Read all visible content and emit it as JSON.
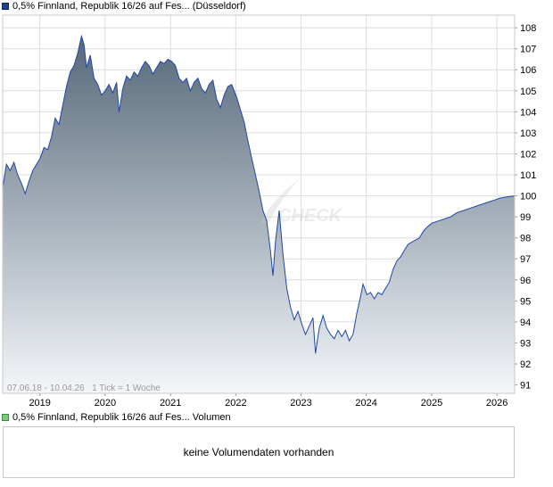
{
  "legend": {
    "price_label": "0,5% Finnland, Republik 16/26 auf Fes... (Düsseldorf)",
    "volume_label": "0,5% Finnland, Republik 16/26 auf Fes... Volumen"
  },
  "info_text": "07.06.18 - 10.04.26   1 Tick = 1 Woche",
  "watermark": "CHECK",
  "volume": {
    "empty_text": "keine Volumendaten vorhanden"
  },
  "colors": {
    "line": "#1f46a8",
    "fill_top": "#56697a",
    "fill_bottom": "#f4f6f9",
    "grid": "#dcdcdc"
  },
  "chart_data": {
    "type": "area",
    "x_tick_labels": [
      "2019",
      "2020",
      "2021",
      "2022",
      "2023",
      "2024",
      "2025",
      "2026"
    ],
    "y_tick_labels": [
      "91",
      "92",
      "93",
      "94",
      "95",
      "96",
      "97",
      "98",
      "99",
      "100",
      "101",
      "102",
      "103",
      "104",
      "105",
      "106",
      "107",
      "108"
    ],
    "ylim": [
      90.6,
      108.6
    ],
    "xlim": [
      "2018-06-07",
      "2026-04-10"
    ],
    "grid": true,
    "series": [
      {
        "values": [
          [
            "2018-06-07",
            100.4
          ],
          [
            "2018-06-28",
            101.5
          ],
          [
            "2018-07-19",
            101.2
          ],
          [
            "2018-08-09",
            101.6
          ],
          [
            "2018-08-30",
            101.0
          ],
          [
            "2018-09-20",
            100.6
          ],
          [
            "2018-10-11",
            100.1
          ],
          [
            "2018-11-01",
            100.7
          ],
          [
            "2018-11-22",
            101.2
          ],
          [
            "2018-12-13",
            101.5
          ],
          [
            "2019-01-03",
            101.8
          ],
          [
            "2019-01-24",
            102.3
          ],
          [
            "2019-02-14",
            102.2
          ],
          [
            "2019-03-07",
            102.8
          ],
          [
            "2019-03-28",
            103.7
          ],
          [
            "2019-04-18",
            103.4
          ],
          [
            "2019-05-09",
            104.3
          ],
          [
            "2019-05-30",
            105.2
          ],
          [
            "2019-06-20",
            105.9
          ],
          [
            "2019-07-11",
            106.2
          ],
          [
            "2019-08-01",
            106.8
          ],
          [
            "2019-08-22",
            107.6
          ],
          [
            "2019-09-05",
            107.2
          ],
          [
            "2019-09-19",
            106.1
          ],
          [
            "2019-10-10",
            106.7
          ],
          [
            "2019-10-31",
            105.6
          ],
          [
            "2019-11-21",
            105.3
          ],
          [
            "2019-12-12",
            104.8
          ],
          [
            "2020-01-02",
            105.0
          ],
          [
            "2020-01-23",
            105.3
          ],
          [
            "2020-02-13",
            104.9
          ],
          [
            "2020-03-05",
            105.4
          ],
          [
            "2020-03-19",
            104.0
          ],
          [
            "2020-04-09",
            105.1
          ],
          [
            "2020-04-30",
            105.7
          ],
          [
            "2020-05-21",
            105.5
          ],
          [
            "2020-06-11",
            105.9
          ],
          [
            "2020-07-02",
            105.7
          ],
          [
            "2020-07-23",
            106.1
          ],
          [
            "2020-08-13",
            106.4
          ],
          [
            "2020-09-03",
            106.2
          ],
          [
            "2020-09-24",
            105.8
          ],
          [
            "2020-10-15",
            106.1
          ],
          [
            "2020-11-05",
            106.4
          ],
          [
            "2020-11-26",
            106.3
          ],
          [
            "2020-12-17",
            106.5
          ],
          [
            "2021-01-07",
            106.4
          ],
          [
            "2021-01-28",
            106.2
          ],
          [
            "2021-02-18",
            105.6
          ],
          [
            "2021-03-11",
            105.4
          ],
          [
            "2021-04-01",
            105.6
          ],
          [
            "2021-04-22",
            105.0
          ],
          [
            "2021-05-13",
            105.4
          ],
          [
            "2021-06-03",
            105.6
          ],
          [
            "2021-06-24",
            105.1
          ],
          [
            "2021-07-15",
            104.9
          ],
          [
            "2021-08-05",
            105.3
          ],
          [
            "2021-08-26",
            105.5
          ],
          [
            "2021-09-16",
            104.6
          ],
          [
            "2021-10-07",
            104.2
          ],
          [
            "2021-10-28",
            104.8
          ],
          [
            "2021-11-18",
            105.2
          ],
          [
            "2021-12-09",
            105.3
          ],
          [
            "2022-01-06",
            104.7
          ],
          [
            "2022-01-27",
            104.1
          ],
          [
            "2022-02-17",
            103.5
          ],
          [
            "2022-03-10",
            102.6
          ],
          [
            "2022-03-31",
            101.8
          ],
          [
            "2022-04-21",
            101.0
          ],
          [
            "2022-05-12",
            100.2
          ],
          [
            "2022-06-02",
            99.3
          ],
          [
            "2022-06-23",
            98.8
          ],
          [
            "2022-07-14",
            97.4
          ],
          [
            "2022-07-28",
            96.2
          ],
          [
            "2022-08-11",
            97.8
          ],
          [
            "2022-09-01",
            99.3
          ],
          [
            "2022-09-22",
            97.2
          ],
          [
            "2022-10-13",
            95.6
          ],
          [
            "2022-11-03",
            94.7
          ],
          [
            "2022-11-24",
            94.1
          ],
          [
            "2022-12-15",
            94.5
          ],
          [
            "2023-01-05",
            93.9
          ],
          [
            "2023-01-26",
            93.4
          ],
          [
            "2023-02-16",
            93.8
          ],
          [
            "2023-03-09",
            94.2
          ],
          [
            "2023-03-23",
            92.5
          ],
          [
            "2023-04-13",
            93.7
          ],
          [
            "2023-05-04",
            94.3
          ],
          [
            "2023-05-25",
            93.7
          ],
          [
            "2023-06-15",
            93.4
          ],
          [
            "2023-07-06",
            93.2
          ],
          [
            "2023-07-27",
            93.6
          ],
          [
            "2023-08-17",
            93.3
          ],
          [
            "2023-09-07",
            93.6
          ],
          [
            "2023-09-28",
            93.1
          ],
          [
            "2023-10-19",
            93.4
          ],
          [
            "2023-11-09",
            94.4
          ],
          [
            "2023-11-30",
            95.2
          ],
          [
            "2023-12-14",
            95.8
          ],
          [
            "2024-01-04",
            95.3
          ],
          [
            "2024-01-25",
            95.4
          ],
          [
            "2024-02-15",
            95.1
          ],
          [
            "2024-03-07",
            95.4
          ],
          [
            "2024-03-28",
            95.3
          ],
          [
            "2024-04-18",
            95.6
          ],
          [
            "2024-05-09",
            95.9
          ],
          [
            "2024-05-30",
            96.5
          ],
          [
            "2024-06-20",
            96.9
          ],
          [
            "2024-07-11",
            97.1
          ],
          [
            "2024-08-01",
            97.4
          ],
          [
            "2024-08-22",
            97.7
          ],
          [
            "2024-09-12",
            97.8
          ],
          [
            "2024-10-03",
            97.9
          ],
          [
            "2024-10-24",
            98.0
          ],
          [
            "2024-11-14",
            98.3
          ],
          [
            "2024-12-05",
            98.5
          ],
          [
            "2025-01-02",
            98.7
          ],
          [
            "2025-02-06",
            98.8
          ],
          [
            "2025-03-13",
            98.9
          ],
          [
            "2025-04-17",
            99.0
          ],
          [
            "2025-05-22",
            99.2
          ],
          [
            "2025-06-26",
            99.3
          ],
          [
            "2025-07-31",
            99.4
          ],
          [
            "2025-09-04",
            99.5
          ],
          [
            "2025-10-09",
            99.6
          ],
          [
            "2025-11-13",
            99.7
          ],
          [
            "2025-12-18",
            99.8
          ],
          [
            "2026-01-22",
            99.9
          ],
          [
            "2026-02-26",
            99.95
          ],
          [
            "2026-04-10",
            100.0
          ]
        ]
      }
    ]
  }
}
